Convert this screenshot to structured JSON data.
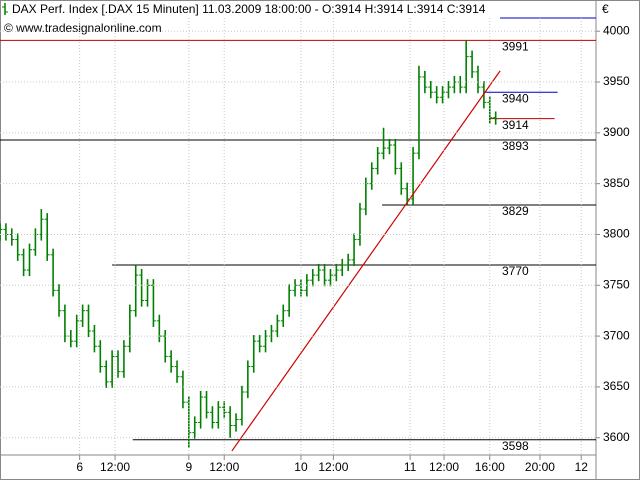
{
  "chart_data": {
    "type": "ohlc",
    "title": "DAX Perf. Index [.DAX  15 Minuten] 11.03.2009 18:00:00 - O:3914 H:3914 L:3914 C:3914",
    "subtitle": "© www.tradesignalonline.com",
    "y_unit": "€",
    "color": "#008000",
    "grid": true,
    "xlim": [
      0,
      202
    ],
    "ylim": [
      3583,
      4013
    ],
    "yticks": [
      3600,
      3650,
      3700,
      3750,
      3800,
      3850,
      3900,
      3950,
      4000
    ],
    "xticks": [
      {
        "value": 27,
        "label": "6"
      },
      {
        "value": 39,
        "label": "12:00"
      },
      {
        "value": 64,
        "label": "9"
      },
      {
        "value": 76,
        "label": "12:00"
      },
      {
        "value": 102,
        "label": "10"
      },
      {
        "value": 113,
        "label": "12:00"
      },
      {
        "value": 139,
        "label": "11"
      },
      {
        "value": 150.5,
        "label": "12:00"
      },
      {
        "value": 166,
        "label": "16:00"
      },
      {
        "value": 183,
        "label": "20:00"
      },
      {
        "value": 197,
        "label": "12"
      }
    ],
    "x": [
      0,
      2,
      4,
      6,
      8,
      10,
      12,
      14,
      16,
      18,
      20,
      22,
      24,
      26,
      28,
      30,
      32,
      34,
      36,
      38,
      40,
      42,
      44,
      46,
      48,
      50,
      52,
      54,
      56,
      58,
      60,
      62,
      64,
      66,
      68,
      70,
      72,
      74,
      76,
      78,
      80,
      82,
      84,
      86,
      88,
      90,
      92,
      94,
      96,
      98,
      100,
      102,
      104,
      106,
      108,
      110,
      112,
      114,
      116,
      118,
      120,
      122,
      124,
      126,
      128,
      130,
      132,
      134,
      136,
      138,
      140,
      142,
      144,
      146,
      148,
      150,
      152,
      154,
      156,
      158,
      160,
      162,
      164,
      166,
      168
    ],
    "open": [
      3800,
      3805,
      3800,
      3795,
      3780,
      3765,
      3785,
      3800,
      3815,
      3780,
      3745,
      3725,
      3700,
      3695,
      3715,
      3725,
      3705,
      3690,
      3670,
      3655,
      3680,
      3665,
      3690,
      3725,
      3760,
      3735,
      3750,
      3715,
      3700,
      3680,
      3670,
      3660,
      3635,
      3605,
      3615,
      3640,
      3625,
      3615,
      3630,
      3625,
      3612,
      3618,
      3645,
      3670,
      3695,
      3690,
      3700,
      3705,
      3715,
      3725,
      3745,
      3750,
      3745,
      3755,
      3760,
      3765,
      3755,
      3760,
      3765,
      3770,
      3775,
      3795,
      3825,
      3850,
      3865,
      3880,
      3885,
      3888,
      3865,
      3845,
      3835,
      3880,
      3955,
      3945,
      3940,
      3935,
      3940,
      3945,
      3950,
      3945,
      3975,
      3960,
      3945,
      3930,
      3915
    ],
    "high": [
      3811,
      3811,
      3806,
      3801,
      3786,
      3791,
      3806,
      3825,
      3821,
      3786,
      3751,
      3731,
      3706,
      3721,
      3731,
      3731,
      3711,
      3696,
      3676,
      3686,
      3686,
      3696,
      3731,
      3770,
      3766,
      3756,
      3756,
      3721,
      3706,
      3686,
      3676,
      3666,
      3641,
      3621,
      3646,
      3646,
      3631,
      3636,
      3636,
      3631,
      3624,
      3651,
      3676,
      3701,
      3701,
      3706,
      3711,
      3721,
      3731,
      3751,
      3756,
      3756,
      3761,
      3766,
      3771,
      3771,
      3766,
      3771,
      3776,
      3781,
      3801,
      3831,
      3856,
      3871,
      3886,
      3905,
      3894,
      3894,
      3871,
      3851,
      3886,
      3966,
      3961,
      3951,
      3946,
      3946,
      3951,
      3956,
      3956,
      3991,
      3981,
      3966,
      3951,
      3936,
      3921
    ],
    "low": [
      3794,
      3794,
      3789,
      3774,
      3759,
      3759,
      3779,
      3794,
      3774,
      3739,
      3719,
      3694,
      3689,
      3689,
      3709,
      3699,
      3684,
      3664,
      3649,
      3649,
      3659,
      3659,
      3684,
      3719,
      3729,
      3729,
      3709,
      3694,
      3674,
      3664,
      3654,
      3629,
      3590,
      3599,
      3609,
      3619,
      3609,
      3609,
      3619,
      3600,
      3606,
      3612,
      3639,
      3664,
      3684,
      3684,
      3694,
      3699,
      3709,
      3719,
      3739,
      3739,
      3739,
      3749,
      3754,
      3749,
      3749,
      3754,
      3759,
      3764,
      3769,
      3789,
      3819,
      3844,
      3859,
      3874,
      3879,
      3859,
      3839,
      3829,
      3829,
      3874,
      3939,
      3934,
      3929,
      3929,
      3934,
      3939,
      3939,
      3939,
      3954,
      3939,
      3924,
      3909,
      3908
    ],
    "close": [
      3805,
      3800,
      3795,
      3780,
      3765,
      3785,
      3800,
      3815,
      3780,
      3745,
      3725,
      3700,
      3695,
      3715,
      3725,
      3705,
      3690,
      3670,
      3655,
      3680,
      3665,
      3690,
      3725,
      3760,
      3735,
      3750,
      3715,
      3700,
      3680,
      3670,
      3660,
      3635,
      3605,
      3615,
      3640,
      3625,
      3615,
      3630,
      3625,
      3612,
      3618,
      3645,
      3670,
      3695,
      3690,
      3700,
      3705,
      3715,
      3725,
      3745,
      3750,
      3745,
      3755,
      3760,
      3765,
      3755,
      3760,
      3765,
      3770,
      3775,
      3795,
      3825,
      3850,
      3865,
      3880,
      3885,
      3888,
      3865,
      3845,
      3835,
      3880,
      3955,
      3945,
      3940,
      3935,
      3940,
      3945,
      3950,
      3945,
      3975,
      3960,
      3945,
      3930,
      3915,
      3914
    ],
    "levels": [
      {
        "value": 3991,
        "from": 0,
        "to": 202,
        "color": "#c00000"
      },
      {
        "value": 3893,
        "from": 0,
        "to": 202,
        "color": "#000000"
      },
      {
        "value": 3829,
        "from": 129.5,
        "to": 202,
        "color": "#000000"
      },
      {
        "value": 3770,
        "from": 38,
        "to": 202,
        "color": "#000000"
      },
      {
        "value": 3598,
        "from": 45,
        "to": 202,
        "color": "#000000"
      },
      {
        "value": 3940,
        "from": 164.4,
        "to": 189,
        "color": "#0000c0"
      },
      {
        "value": 3914,
        "from": 166,
        "to": 188,
        "color": "#c00000"
      }
    ],
    "trendline": {
      "x": [
        78.6,
        169.5
      ],
      "y": [
        3587,
        3961
      ],
      "color": "#d00000"
    }
  }
}
